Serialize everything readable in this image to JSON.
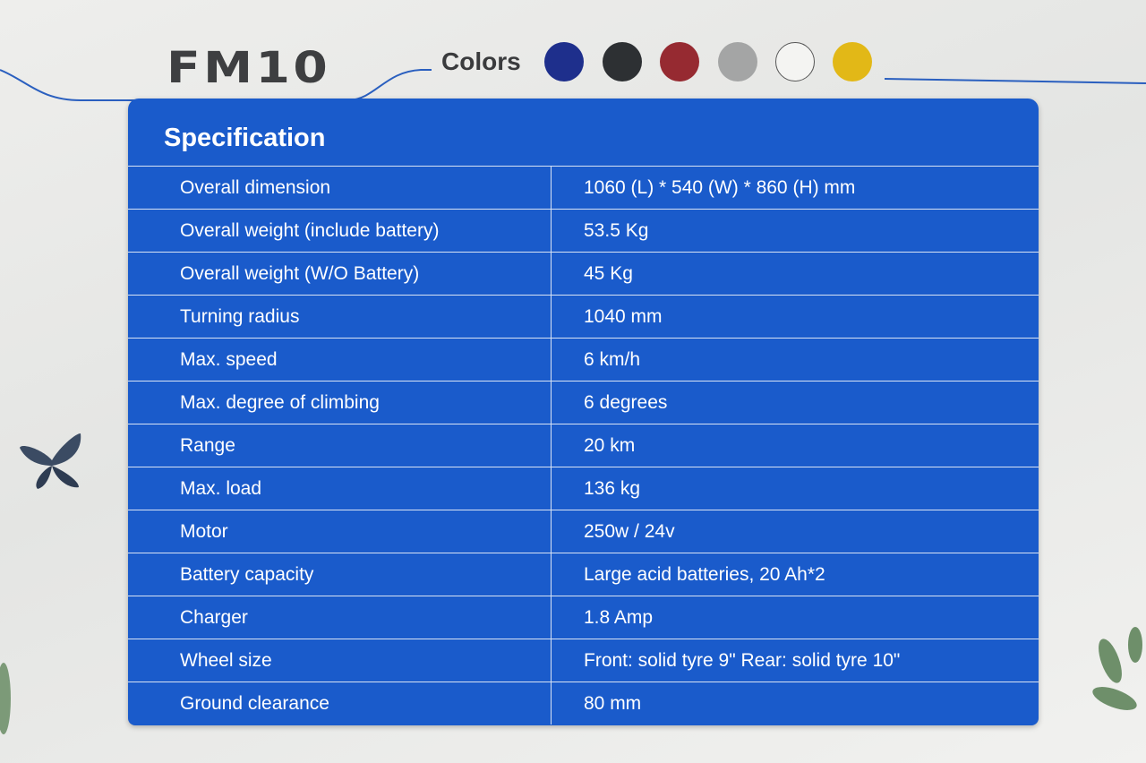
{
  "header": {
    "model": "FM10",
    "colors_label": "Colors"
  },
  "table": {
    "title": "Specification",
    "rows": [
      [
        "Overall dimension",
        "1060 (L) * 540 (W) * 860 (H) mm"
      ],
      [
        "Overall weight (include battery)",
        "53.5 Kg"
      ],
      [
        "Overall weight (W/O Battery)",
        "45 Kg"
      ],
      [
        "Turning radius",
        "1040 mm"
      ],
      [
        "Max. speed",
        "6 km/h"
      ],
      [
        "Max. degree of climbing",
        "6 degrees"
      ],
      [
        "Range",
        "20 km"
      ],
      [
        "Max. load",
        "136 kg"
      ],
      [
        "Motor",
        "250w / 24v"
      ],
      [
        "Battery capacity",
        "Large acid batteries, 20 Ah*2"
      ],
      [
        "Charger",
        "1.8 Amp"
      ],
      [
        "Wheel size",
        "Front: solid tyre 9\" Rear: solid tyre 10\""
      ],
      [
        "Ground clearance",
        "80 mm"
      ]
    ]
  }
}
